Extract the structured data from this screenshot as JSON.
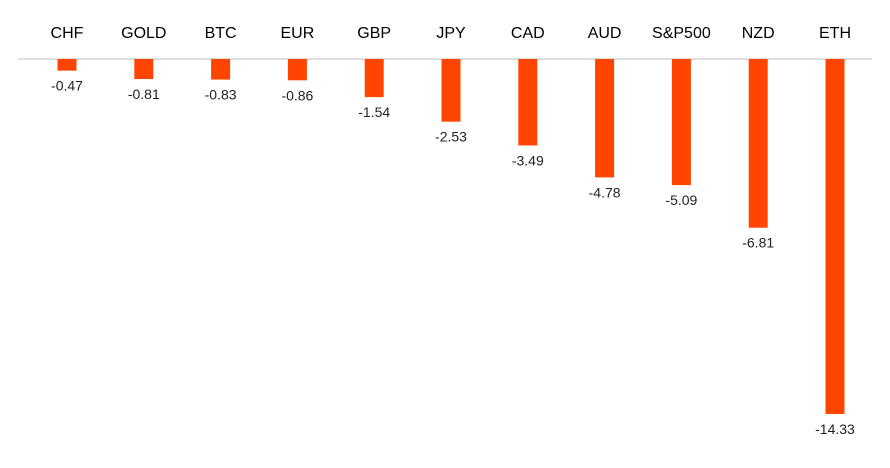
{
  "chart_data": {
    "type": "bar",
    "orientation": "vertical",
    "categories": [
      "CHF",
      "GOLD",
      "BTC",
      "EUR",
      "GBP",
      "JPY",
      "CAD",
      "AUD",
      "S&P500",
      "NZD",
      "ETH"
    ],
    "values": [
      -0.47,
      -0.81,
      -0.83,
      -0.86,
      -1.54,
      -2.53,
      -3.49,
      -4.78,
      -5.09,
      -6.81,
      -14.33
    ],
    "data_labels": [
      "-0.47",
      "-0.81",
      "-0.83",
      "-0.86",
      "-1.54",
      "-2.53",
      "-3.49",
      "-4.78",
      "-5.09",
      "-6.81",
      "-14.33"
    ],
    "title": "",
    "xlabel": "",
    "ylabel": "",
    "ylim": [
      -14.33,
      0
    ],
    "category_labels_position": "top",
    "grid": false,
    "legend": "none",
    "colors": {
      "bar": "#FF4500",
      "baseline": "#bfbfbf"
    }
  }
}
